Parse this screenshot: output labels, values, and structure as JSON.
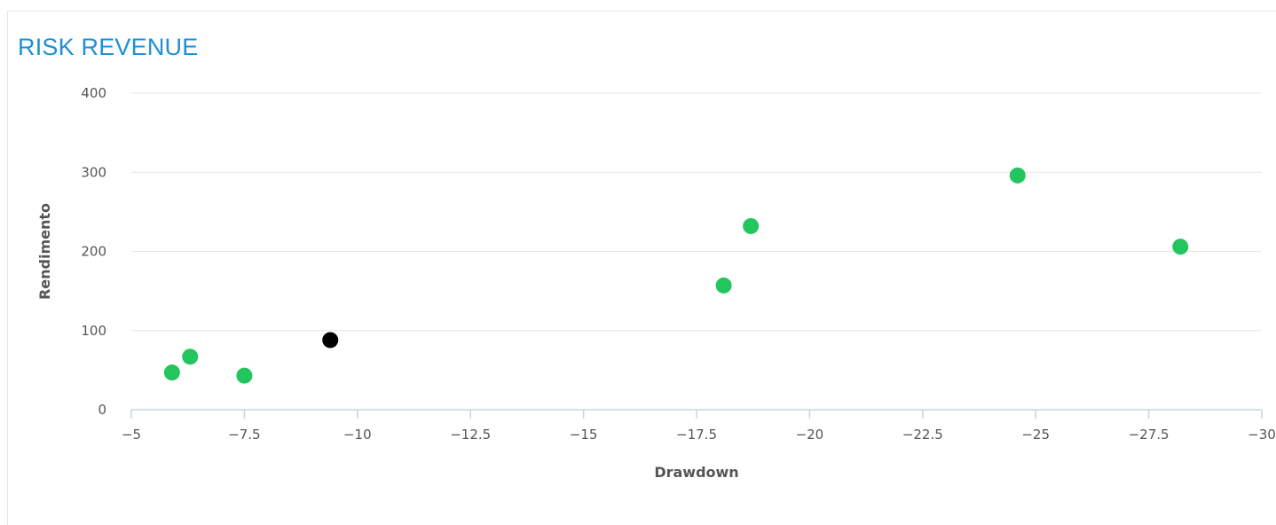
{
  "chart_data": {
    "type": "scatter",
    "title": "RISK REVENUE",
    "xlabel": "Drawdown",
    "ylabel": "Rendimento",
    "xlim": [
      -5,
      -30
    ],
    "ylim": [
      0,
      400
    ],
    "x_reversed": true,
    "x_ticks": [
      -5,
      -7.5,
      -10,
      -12.5,
      -15,
      -17.5,
      -20,
      -22.5,
      -25,
      -27.5,
      -30
    ],
    "x_tick_labels": [
      "−5",
      "−7.5",
      "−10",
      "−12.5",
      "−15",
      "−17.5",
      "−20",
      "−22.5",
      "−25",
      "−27.5",
      "−30"
    ],
    "y_ticks": [
      0,
      100,
      200,
      300,
      400
    ],
    "y_tick_labels": [
      "0",
      "100",
      "200",
      "300",
      "400"
    ],
    "grid": "horizontal",
    "legend": "none",
    "points": [
      {
        "x": -5.9,
        "y": 47,
        "color": "#22c55e"
      },
      {
        "x": -6.3,
        "y": 67,
        "color": "#22c55e"
      },
      {
        "x": -7.5,
        "y": 43,
        "color": "#22c55e"
      },
      {
        "x": -9.4,
        "y": 88,
        "color": "#000000"
      },
      {
        "x": -18.1,
        "y": 157,
        "color": "#22c55e"
      },
      {
        "x": -18.7,
        "y": 232,
        "color": "#22c55e"
      },
      {
        "x": -24.6,
        "y": 296,
        "color": "#22c55e"
      },
      {
        "x": -28.2,
        "y": 206,
        "color": "#22c55e"
      }
    ]
  },
  "colors": {
    "title": "#1f8fd6",
    "grid": "#e6e6e6",
    "axis": "#c9d3e0",
    "highlight": "#000000",
    "point": "#22c55e"
  }
}
